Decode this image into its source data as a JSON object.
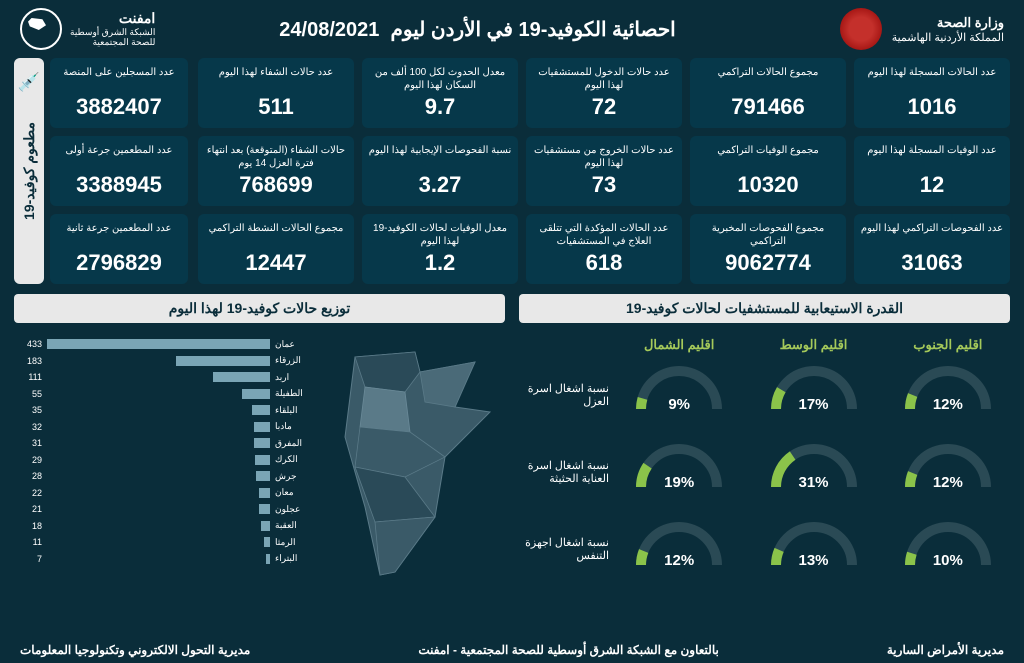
{
  "header": {
    "ministry_line1": "وزارة الصحة",
    "ministry_line2": "المملكة الأردنية الهاشمية",
    "title": "احصائية الكوفيد-19 في الأردن ليوم",
    "date": "24/08/2021",
    "network_brand": "امفنت",
    "network_sub1": "الشبكة الشرق أوسطية",
    "network_sub2": "للصحة المجتمعية"
  },
  "stats": [
    {
      "label": "عدد الحالات المسجلة لهذا اليوم",
      "value": "1016"
    },
    {
      "label": "مجموع الحالات التراكمي",
      "value": "791466"
    },
    {
      "label": "عدد حالات الدخول للمستشفيات لهذا اليوم",
      "value": "72"
    },
    {
      "label": "معدل الحدوث لكل 100 ألف من السكان لهذا اليوم",
      "value": "9.7"
    },
    {
      "label": "عدد حالات الشفاء لهذا اليوم",
      "value": "511"
    },
    {
      "label": "عدد الوفيات المسجلة لهذا اليوم",
      "value": "12"
    },
    {
      "label": "مجموع الوفيات التراكمي",
      "value": "10320"
    },
    {
      "label": "عدد حالات الخروج من مستشفيات لهذا اليوم",
      "value": "73"
    },
    {
      "label": "نسبة الفحوصات الإيجابية لهذا اليوم",
      "value": "3.27"
    },
    {
      "label": "حالات الشفاء (المتوقعة) بعد انتهاء فترة العزل 14 يوم",
      "value": "768699"
    },
    {
      "label": "عدد الفحوصات التراكمي لهذا اليوم",
      "value": "31063"
    },
    {
      "label": "مجموع الفحوصات المخبرية التراكمي",
      "value": "9062774"
    },
    {
      "label": "عدد الحالات المؤكدة التي تتلقى العلاج في المستشفيات",
      "value": "618"
    },
    {
      "label": "معدل الوفيات لحالات الكوفيد-19 لهذا اليوم",
      "value": "1.2"
    },
    {
      "label": "مجموع الحالات النشطة التراكمي",
      "value": "12447"
    }
  ],
  "vaccine": {
    "title": "مطعوم كوفيد-19",
    "boxes": [
      {
        "label": "عدد المسجلين على المنصة",
        "value": "3882407"
      },
      {
        "label": "عدد المطعمين جرعة أولى",
        "value": "3388945"
      },
      {
        "label": "عدد المطعمين جرعة ثانية",
        "value": "2796829"
      }
    ]
  },
  "capacity": {
    "title": "القدرة الاستيعابية للمستشفيات لحالات كوفيد-19",
    "regions": [
      "اقليم الشمال",
      "اقليم الوسط",
      "اقليم الجنوب"
    ],
    "row_labels": [
      "نسبة اشغال اسرة العزل",
      "نسبة اشغال اسرة العناية الحثيثة",
      "نسبة اشغال اجهزة التنفس"
    ],
    "values": [
      [
        9,
        17,
        12
      ],
      [
        19,
        31,
        12
      ],
      [
        12,
        13,
        10
      ]
    ],
    "gauge_track_color": "#2a4a55",
    "gauge_fill_color": "#8bc34a"
  },
  "distribution": {
    "title": "توزيع حالات كوفيد-19 لهذا اليوم",
    "max_value": 433,
    "bar_color": "#7aa5b5",
    "bars": [
      {
        "label": "عمان",
        "value": 433
      },
      {
        "label": "الزرقاء",
        "value": 183
      },
      {
        "label": "اربد",
        "value": 111
      },
      {
        "label": "الطفيلة",
        "value": 55
      },
      {
        "label": "البلقاء",
        "value": 35
      },
      {
        "label": "مادبا",
        "value": 32
      },
      {
        "label": "المفرق",
        "value": 31
      },
      {
        "label": "الكرك",
        "value": 29
      },
      {
        "label": "جرش",
        "value": 28
      },
      {
        "label": "معان",
        "value": 22
      },
      {
        "label": "عجلون",
        "value": 21
      },
      {
        "label": "العقبة",
        "value": 18
      },
      {
        "label": "الرمثا",
        "value": 11
      },
      {
        "label": "البتراء",
        "value": 7
      }
    ]
  },
  "footer": {
    "right": "مديرية الأمراض السارية",
    "center": "بالتعاون مع الشبكة الشرق أوسطية للصحة المجتمعية - امفنت",
    "left": "مديرية التحول الالكتروني وتكنولوجيا المعلومات"
  },
  "colors": {
    "bg": "#0a2d3a",
    "box_bg": "#06384a",
    "panel_bg": "#e8e8e8",
    "accent_green": "#a5c95a"
  }
}
